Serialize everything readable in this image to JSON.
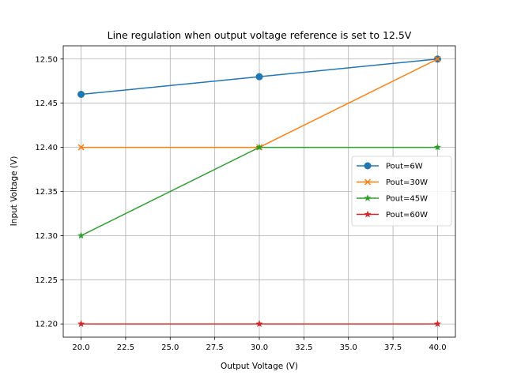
{
  "chart_data": {
    "type": "line",
    "title": "Line regulation when output voltage reference is set to 12.5V",
    "xlabel": "Output Voltage (V)",
    "ylabel": "Input Voltage (V)",
    "xlim": [
      19.0,
      41.0
    ],
    "ylim": [
      12.185,
      12.515
    ],
    "x": [
      20,
      30,
      40
    ],
    "xticks": [
      "20.0",
      "22.5",
      "25.0",
      "27.5",
      "30.0",
      "32.5",
      "35.0",
      "37.5",
      "40.0"
    ],
    "xtick_values": [
      20.0,
      22.5,
      25.0,
      27.5,
      30.0,
      32.5,
      35.0,
      37.5,
      40.0
    ],
    "yticks": [
      "12.20",
      "12.25",
      "12.30",
      "12.35",
      "12.40",
      "12.45",
      "12.50"
    ],
    "ytick_values": [
      12.2,
      12.25,
      12.3,
      12.35,
      12.4,
      12.45,
      12.5
    ],
    "grid": true,
    "legend_position": "center-right",
    "series": [
      {
        "name": "Pout=6W",
        "values": [
          12.46,
          12.48,
          12.5
        ],
        "color": "#1f77b4",
        "marker": "circle"
      },
      {
        "name": "Pout=30W",
        "values": [
          12.4,
          12.4,
          12.5
        ],
        "color": "#ff7f0e",
        "marker": "x"
      },
      {
        "name": "Pout=45W",
        "values": [
          12.3,
          12.4,
          12.4
        ],
        "color": "#2ca02c",
        "marker": "star"
      },
      {
        "name": "Pout=60W",
        "values": [
          12.2,
          12.2,
          12.2
        ],
        "color": "#d62728",
        "marker": "star"
      }
    ]
  }
}
